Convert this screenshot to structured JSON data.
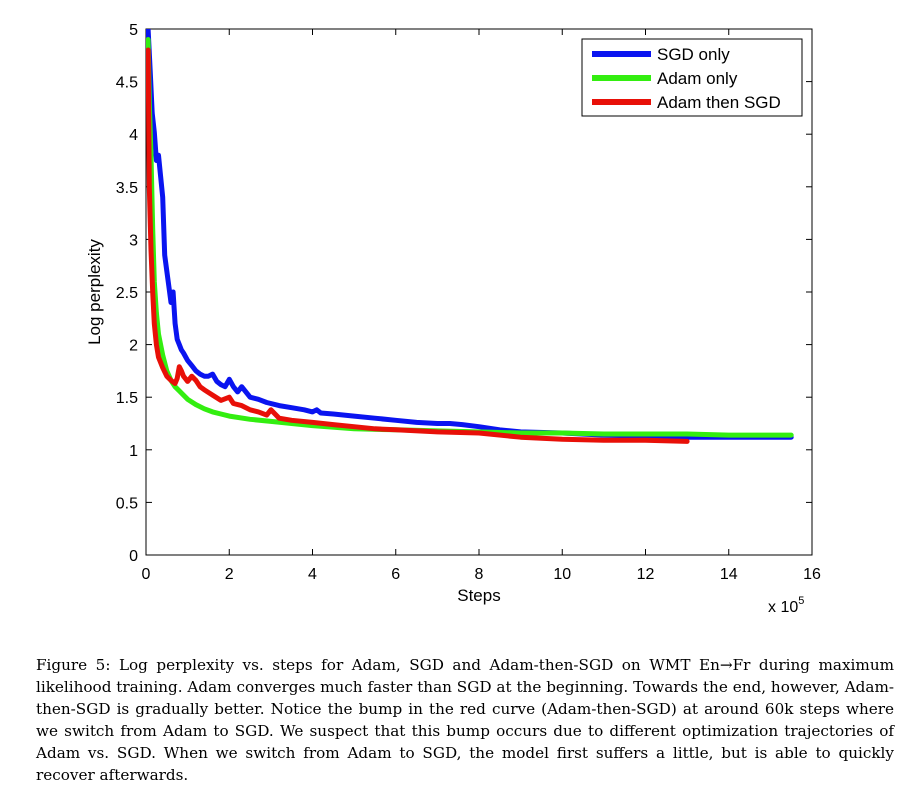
{
  "chart_data": {
    "type": "line",
    "xlabel": "Steps",
    "ylabel": "Log perplexity",
    "x_multiplier_base": "x 10",
    "x_multiplier_exp": "5",
    "xlim": [
      0,
      16
    ],
    "ylim": [
      0,
      5
    ],
    "x_ticks": [
      0,
      2,
      4,
      6,
      8,
      10,
      12,
      14,
      16
    ],
    "y_ticks": [
      0,
      0.5,
      1,
      1.5,
      2,
      2.5,
      3,
      3.5,
      4,
      4.5,
      5
    ],
    "legend_position": "top-right",
    "series": [
      {
        "name": "SGD only",
        "color": "#0a14f0",
        "x": [
          0.05,
          0.1,
          0.15,
          0.2,
          0.25,
          0.3,
          0.35,
          0.4,
          0.45,
          0.5,
          0.55,
          0.6,
          0.65,
          0.7,
          0.75,
          0.8,
          0.85,
          0.9,
          1.0,
          1.1,
          1.2,
          1.3,
          1.4,
          1.5,
          1.6,
          1.7,
          1.8,
          1.9,
          2.0,
          2.1,
          2.2,
          2.3,
          2.5,
          2.7,
          2.9,
          3.2,
          3.5,
          3.8,
          4.0,
          4.1,
          4.2,
          4.5,
          5.0,
          5.5,
          6.0,
          6.5,
          7.0,
          7.3,
          7.6,
          8.0,
          8.5,
          9.0,
          10.0,
          11.0,
          12.0,
          13.0,
          14.0,
          15.0,
          15.5
        ],
        "values": [
          5.0,
          4.6,
          4.2,
          4.02,
          3.75,
          3.8,
          3.6,
          3.4,
          2.85,
          2.7,
          2.55,
          2.4,
          2.5,
          2.2,
          2.05,
          2.0,
          1.95,
          1.92,
          1.85,
          1.8,
          1.75,
          1.72,
          1.7,
          1.7,
          1.72,
          1.65,
          1.62,
          1.6,
          1.67,
          1.6,
          1.55,
          1.6,
          1.5,
          1.48,
          1.45,
          1.42,
          1.4,
          1.38,
          1.36,
          1.38,
          1.35,
          1.34,
          1.32,
          1.3,
          1.28,
          1.26,
          1.25,
          1.25,
          1.24,
          1.22,
          1.19,
          1.17,
          1.16,
          1.14,
          1.13,
          1.12,
          1.12,
          1.12,
          1.12
        ]
      },
      {
        "name": "Adam only",
        "color": "#33ee10",
        "x": [
          0.05,
          0.08,
          0.12,
          0.16,
          0.2,
          0.25,
          0.3,
          0.4,
          0.5,
          0.6,
          0.7,
          0.8,
          0.9,
          1.0,
          1.2,
          1.4,
          1.6,
          1.8,
          2.0,
          2.5,
          3.0,
          3.5,
          4.0,
          5.0,
          6.0,
          7.0,
          8.0,
          9.0,
          10.0,
          11.0,
          12.0,
          13.0,
          14.0,
          15.0,
          15.5
        ],
        "values": [
          4.9,
          4.3,
          3.8,
          3.1,
          2.6,
          2.3,
          2.1,
          1.9,
          1.75,
          1.66,
          1.6,
          1.56,
          1.52,
          1.48,
          1.43,
          1.39,
          1.36,
          1.34,
          1.32,
          1.29,
          1.27,
          1.25,
          1.23,
          1.2,
          1.19,
          1.18,
          1.17,
          1.16,
          1.16,
          1.15,
          1.15,
          1.15,
          1.14,
          1.14,
          1.14
        ]
      },
      {
        "name": "Adam then SGD",
        "color": "#e81008",
        "x": [
          0.05,
          0.08,
          0.12,
          0.16,
          0.2,
          0.25,
          0.3,
          0.4,
          0.5,
          0.6,
          0.7,
          0.75,
          0.8,
          0.85,
          0.9,
          1.0,
          1.1,
          1.2,
          1.3,
          1.4,
          1.6,
          1.8,
          2.0,
          2.1,
          2.3,
          2.5,
          2.7,
          2.9,
          3.0,
          3.2,
          3.5,
          4.0,
          4.5,
          5.0,
          5.5,
          6.0,
          7.0,
          8.0,
          9.0,
          10.0,
          11.0,
          12.0,
          13.0
        ],
        "values": [
          4.8,
          3.5,
          2.9,
          2.5,
          2.2,
          2.0,
          1.88,
          1.78,
          1.7,
          1.66,
          1.63,
          1.68,
          1.79,
          1.75,
          1.7,
          1.65,
          1.7,
          1.66,
          1.6,
          1.57,
          1.52,
          1.47,
          1.5,
          1.44,
          1.42,
          1.38,
          1.36,
          1.33,
          1.38,
          1.3,
          1.28,
          1.26,
          1.24,
          1.22,
          1.2,
          1.19,
          1.17,
          1.16,
          1.12,
          1.1,
          1.09,
          1.09,
          1.08
        ]
      }
    ]
  },
  "caption": "Figure 5: Log perplexity vs. steps for Adam, SGD and Adam-then-SGD on WMT En→Fr during maximum likelihood training. Adam converges much faster than SGD at the beginning. Towards the end, however, Adam-then-SGD is gradually better. Notice the bump in the red curve (Adam-then-SGD) at around 60k steps where we switch from Adam to SGD. We suspect that this bump occurs due to different optimization trajectories of Adam vs. SGD. When we switch from Adam to SGD, the model first suffers a little, but is able to quickly recover afterwards."
}
